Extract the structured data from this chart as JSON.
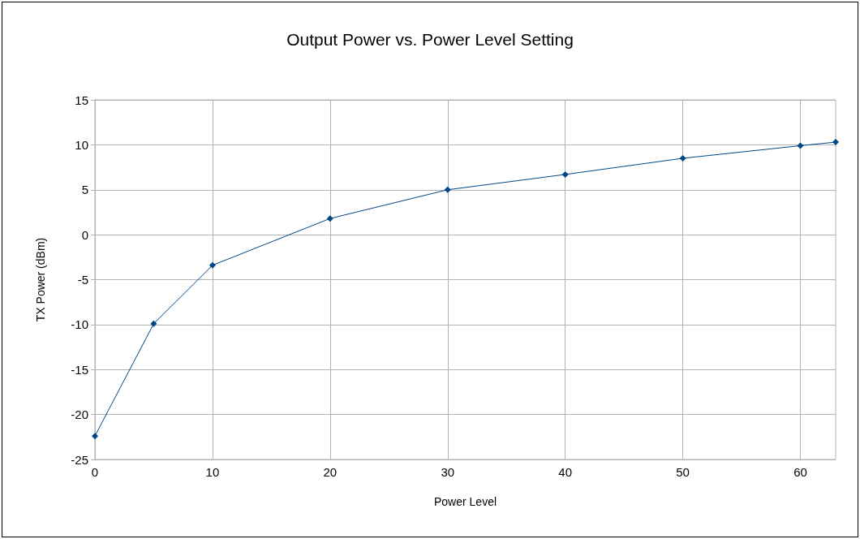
{
  "chart_data": {
    "type": "line",
    "title": "Output Power vs. Power Level Setting",
    "xlabel": "Power Level",
    "ylabel": "TX Power (dBm)",
    "x": [
      0,
      5,
      10,
      20,
      30,
      40,
      50,
      60,
      63
    ],
    "series": [
      {
        "color": "#004586",
        "values": [
          -22.4,
          -9.9,
          -3.4,
          1.8,
          5.0,
          6.7,
          8.5,
          9.9,
          10.3
        ]
      }
    ],
    "xlim": [
      0,
      63
    ],
    "xticks": [
      0,
      10,
      20,
      30,
      40,
      50,
      60
    ],
    "ylim": [
      -25,
      15
    ],
    "yticks": [
      -25,
      -20,
      -15,
      -10,
      -5,
      0,
      5,
      10,
      15
    ],
    "grid": true,
    "marker": "diamond",
    "line_style": "solid"
  }
}
